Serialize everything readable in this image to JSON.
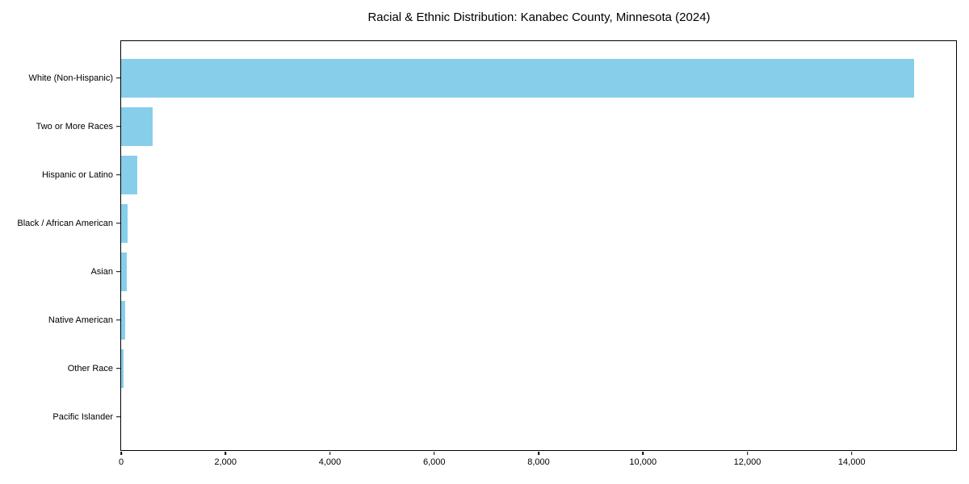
{
  "chart_data": {
    "type": "bar",
    "orientation": "horizontal",
    "title": "Racial & Ethnic Distribution: Kanabec County, Minnesota (2024)",
    "categories": [
      "White (Non-Hispanic)",
      "Two or More Races",
      "Hispanic or Latino",
      "Black / African American",
      "Asian",
      "Native American",
      "Other Race",
      "Pacific Islander"
    ],
    "values": [
      15200,
      600,
      310,
      120,
      105,
      85,
      45,
      0
    ],
    "xlabel": "",
    "ylabel": "",
    "xlim": [
      0,
      16000
    ],
    "x_ticks": [
      0,
      2000,
      4000,
      6000,
      8000,
      10000,
      12000,
      14000
    ],
    "x_tick_labels": [
      "0",
      "2,000",
      "4,000",
      "6,000",
      "8,000",
      "10,000",
      "12,000",
      "14,000"
    ],
    "bar_color": "#87CEEB",
    "axis_color": "#000000",
    "grid": false,
    "legend": "none"
  }
}
